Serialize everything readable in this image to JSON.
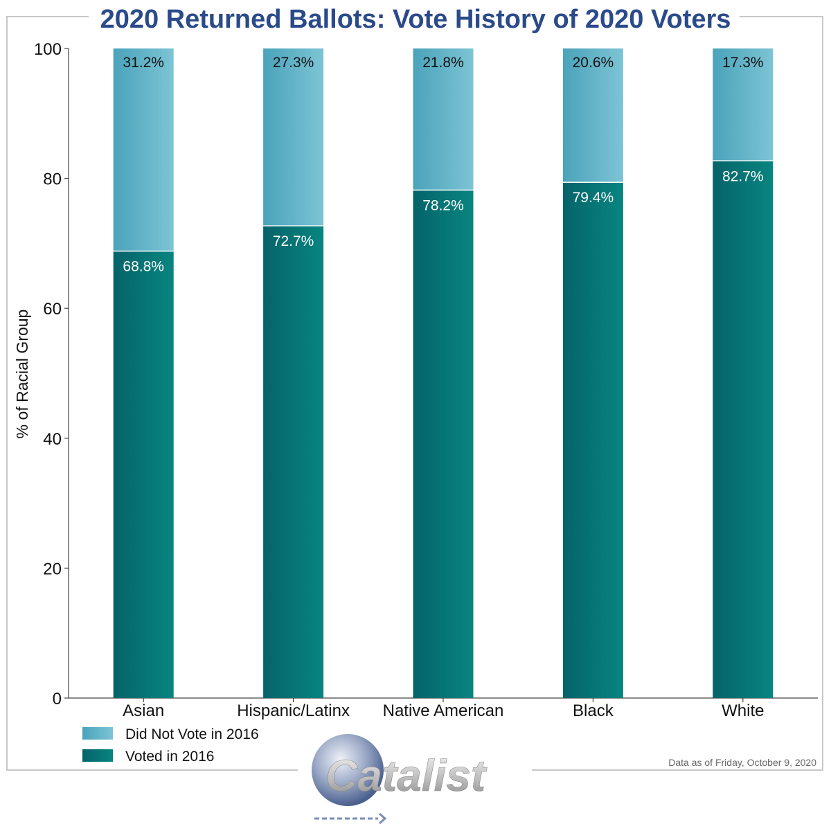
{
  "chart_data": {
    "type": "bar",
    "stacked": true,
    "title": "2020 Returned Ballots: Vote History of 2020 Voters",
    "xlabel": "",
    "ylabel": "% of Racial Group",
    "ylim": [
      0,
      100
    ],
    "yticks": [
      "0",
      "20",
      "40",
      "60",
      "80",
      "100"
    ],
    "categories": [
      "Asian",
      "Hispanic/Latinx",
      "Native American",
      "Black",
      "White"
    ],
    "series": [
      {
        "name": "Voted in 2016",
        "values": [
          68.8,
          72.7,
          78.2,
          79.4,
          82.7
        ],
        "labels": [
          "68.8%",
          "72.7%",
          "78.2%",
          "79.4%",
          "82.7%"
        ],
        "color": "#05696b"
      },
      {
        "name": "Did Not Vote in 2016",
        "values": [
          31.2,
          27.3,
          21.8,
          20.6,
          17.3
        ],
        "labels": [
          "31.2%",
          "27.3%",
          "21.8%",
          "20.6%",
          "17.3%"
        ],
        "color": "#5aafc2"
      }
    ],
    "legend": {
      "position": "bottom-left",
      "entries": [
        "Did Not Vote in 2016",
        "Voted in 2016"
      ]
    },
    "grid": false
  },
  "note": "Data as of Friday, October 9, 2020",
  "logo": {
    "text": "Catalist"
  },
  "colors": {
    "title": "#2a4a8a",
    "voted_dark": "#05696b",
    "voted_light": "#08847f",
    "not_voted_dark": "#4fa6bc",
    "not_voted_light": "#7ac3d4"
  }
}
